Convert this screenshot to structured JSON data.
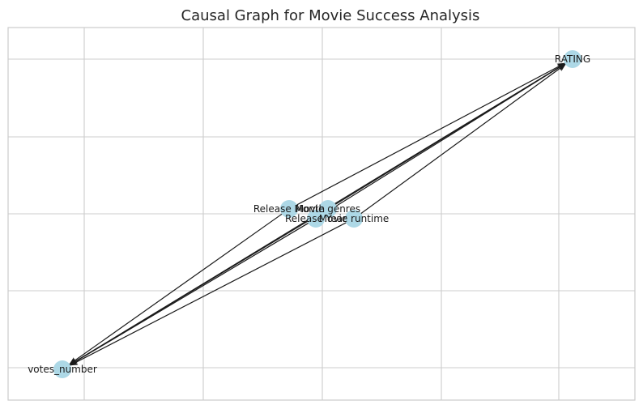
{
  "title": "Causal Graph for Movie Success Analysis",
  "colors": {
    "node": "#add8e6",
    "edge": "#1a1a1a",
    "grid": "#cccccc",
    "background": "#ffffff"
  },
  "grid": true,
  "nodes": [
    {
      "id": "rating",
      "label": "RATING"
    },
    {
      "id": "release_month",
      "label": "Release Month"
    },
    {
      "id": "movie_genres",
      "label": "Movie genres"
    },
    {
      "id": "release_year",
      "label": "Release Year"
    },
    {
      "id": "movie_runtime",
      "label": "Movie runtime"
    },
    {
      "id": "votes_number",
      "label": "votes_number"
    }
  ],
  "edges": [
    {
      "from": "votes_number",
      "to": "rating"
    },
    {
      "from": "release_month",
      "to": "votes_number"
    },
    {
      "from": "movie_genres",
      "to": "votes_number"
    },
    {
      "from": "release_year",
      "to": "votes_number"
    },
    {
      "from": "movie_runtime",
      "to": "votes_number"
    },
    {
      "from": "release_month",
      "to": "rating"
    },
    {
      "from": "movie_genres",
      "to": "rating"
    },
    {
      "from": "release_year",
      "to": "rating"
    },
    {
      "from": "movie_runtime",
      "to": "rating"
    }
  ]
}
